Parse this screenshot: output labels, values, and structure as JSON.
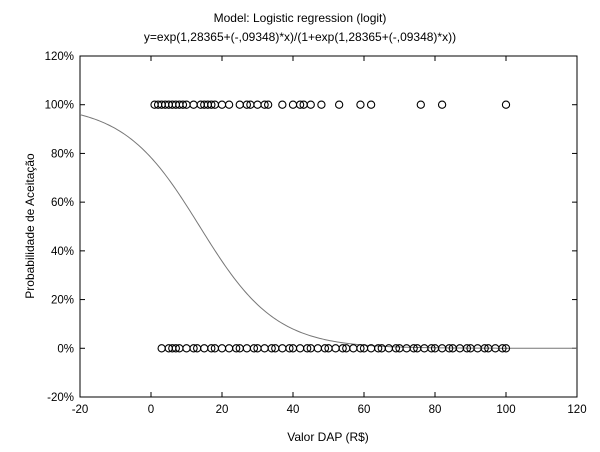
{
  "chart_data": {
    "type": "scatter",
    "title": "Model: Logistic regression (logit)",
    "subtitle": "y=exp(1,28365+(-,09348)*x)/(1+exp(1,28365+(-,09348)*x))",
    "xlabel": "Valor DAP (R$)",
    "ylabel": "Probabilidade de Aceitação",
    "xlim": [
      -20,
      120
    ],
    "ylim": [
      -20,
      120
    ],
    "x_ticks": [
      -20,
      0,
      20,
      40,
      60,
      80,
      100,
      120
    ],
    "y_ticks": [
      -20,
      0,
      20,
      40,
      60,
      80,
      100,
      120
    ],
    "x_tick_labels": [
      "-20",
      "0",
      "20",
      "40",
      "60",
      "80",
      "100",
      "120"
    ],
    "y_tick_labels": [
      "-20%",
      "0%",
      "20%",
      "40%",
      "60%",
      "80%",
      "100%",
      "120%"
    ],
    "grid": false,
    "model": {
      "intercept": 1.28365,
      "slope": -0.09348
    },
    "series": [
      {
        "values": [
          {
            "x": 1,
            "y": 100
          },
          {
            "x": 2,
            "y": 100
          },
          {
            "x": 3,
            "y": 100
          },
          {
            "x": 4,
            "y": 100
          },
          {
            "x": 5,
            "y": 100
          },
          {
            "x": 6,
            "y": 100
          },
          {
            "x": 7,
            "y": 100
          },
          {
            "x": 8,
            "y": 100
          },
          {
            "x": 9,
            "y": 100
          },
          {
            "x": 10,
            "y": 100
          },
          {
            "x": 12,
            "y": 100
          },
          {
            "x": 14,
            "y": 100
          },
          {
            "x": 15,
            "y": 100
          },
          {
            "x": 16,
            "y": 100
          },
          {
            "x": 17,
            "y": 100
          },
          {
            "x": 18,
            "y": 100
          },
          {
            "x": 20,
            "y": 100
          },
          {
            "x": 22,
            "y": 100
          },
          {
            "x": 25,
            "y": 100
          },
          {
            "x": 27,
            "y": 100
          },
          {
            "x": 28,
            "y": 100
          },
          {
            "x": 30,
            "y": 100
          },
          {
            "x": 32,
            "y": 100
          },
          {
            "x": 33,
            "y": 100
          },
          {
            "x": 37,
            "y": 100
          },
          {
            "x": 40,
            "y": 100
          },
          {
            "x": 42,
            "y": 100
          },
          {
            "x": 43,
            "y": 100
          },
          {
            "x": 45,
            "y": 100
          },
          {
            "x": 48,
            "y": 100
          },
          {
            "x": 53,
            "y": 100
          },
          {
            "x": 59,
            "y": 100
          },
          {
            "x": 62,
            "y": 100
          },
          {
            "x": 76,
            "y": 100
          },
          {
            "x": 82,
            "y": 100
          },
          {
            "x": 100,
            "y": 100
          },
          {
            "x": 3,
            "y": 0
          },
          {
            "x": 5,
            "y": 0
          },
          {
            "x": 6,
            "y": 0
          },
          {
            "x": 7,
            "y": 0
          },
          {
            "x": 8,
            "y": 0
          },
          {
            "x": 10,
            "y": 0
          },
          {
            "x": 12,
            "y": 0
          },
          {
            "x": 13,
            "y": 0
          },
          {
            "x": 15,
            "y": 0
          },
          {
            "x": 17,
            "y": 0
          },
          {
            "x": 18,
            "y": 0
          },
          {
            "x": 20,
            "y": 0
          },
          {
            "x": 22,
            "y": 0
          },
          {
            "x": 24,
            "y": 0
          },
          {
            "x": 25,
            "y": 0
          },
          {
            "x": 27,
            "y": 0
          },
          {
            "x": 29,
            "y": 0
          },
          {
            "x": 30,
            "y": 0
          },
          {
            "x": 32,
            "y": 0
          },
          {
            "x": 34,
            "y": 0
          },
          {
            "x": 35,
            "y": 0
          },
          {
            "x": 37,
            "y": 0
          },
          {
            "x": 39,
            "y": 0
          },
          {
            "x": 40,
            "y": 0
          },
          {
            "x": 42,
            "y": 0
          },
          {
            "x": 44,
            "y": 0
          },
          {
            "x": 45,
            "y": 0
          },
          {
            "x": 47,
            "y": 0
          },
          {
            "x": 49,
            "y": 0
          },
          {
            "x": 50,
            "y": 0
          },
          {
            "x": 52,
            "y": 0
          },
          {
            "x": 54,
            "y": 0
          },
          {
            "x": 55,
            "y": 0
          },
          {
            "x": 57,
            "y": 0
          },
          {
            "x": 59,
            "y": 0
          },
          {
            "x": 60,
            "y": 0
          },
          {
            "x": 62,
            "y": 0
          },
          {
            "x": 64,
            "y": 0
          },
          {
            "x": 65,
            "y": 0
          },
          {
            "x": 67,
            "y": 0
          },
          {
            "x": 69,
            "y": 0
          },
          {
            "x": 70,
            "y": 0
          },
          {
            "x": 72,
            "y": 0
          },
          {
            "x": 74,
            "y": 0
          },
          {
            "x": 75,
            "y": 0
          },
          {
            "x": 77,
            "y": 0
          },
          {
            "x": 79,
            "y": 0
          },
          {
            "x": 80,
            "y": 0
          },
          {
            "x": 82,
            "y": 0
          },
          {
            "x": 84,
            "y": 0
          },
          {
            "x": 85,
            "y": 0
          },
          {
            "x": 87,
            "y": 0
          },
          {
            "x": 89,
            "y": 0
          },
          {
            "x": 90,
            "y": 0
          },
          {
            "x": 92,
            "y": 0
          },
          {
            "x": 94,
            "y": 0
          },
          {
            "x": 95,
            "y": 0
          },
          {
            "x": 97,
            "y": 0
          },
          {
            "x": 99,
            "y": 0
          },
          {
            "x": 100,
            "y": 0
          }
        ]
      }
    ]
  }
}
